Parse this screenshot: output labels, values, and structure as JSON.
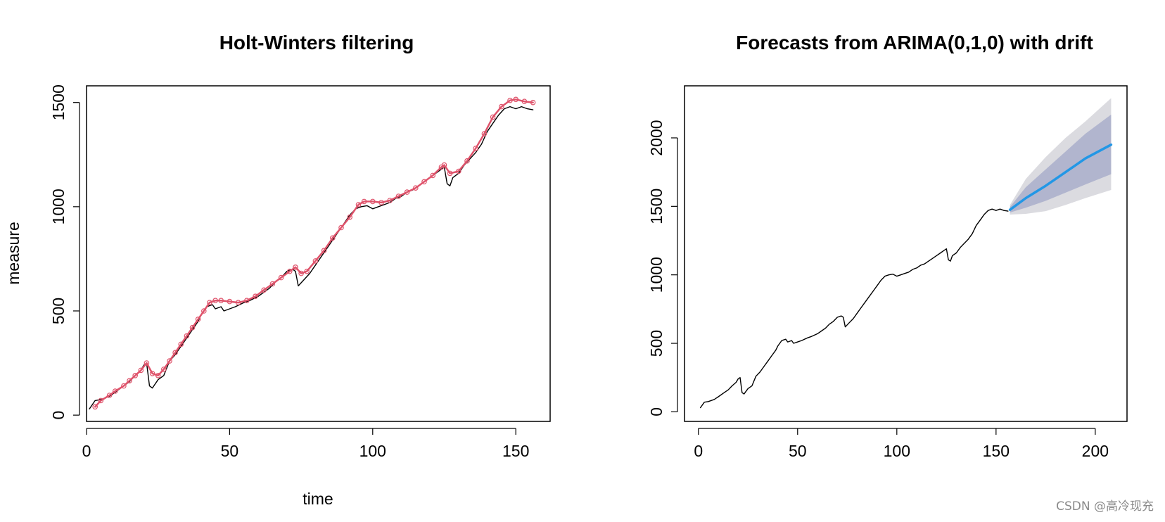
{
  "chart_data": [
    {
      "type": "line",
      "title": "Holt-Winters filtering",
      "xlabel": "time",
      "ylabel": "measure",
      "xlim": [
        0,
        162
      ],
      "ylim": [
        -30,
        1580
      ],
      "xticks": [
        0,
        50,
        100,
        150
      ],
      "yticks": [
        0,
        500,
        1000,
        1500
      ],
      "grid": false,
      "legend": "none",
      "series": [
        {
          "role": "observed",
          "color": "#000000",
          "points": [
            [
              1,
              30
            ],
            [
              3,
              70
            ],
            [
              5,
              75
            ],
            [
              8,
              90
            ],
            [
              10,
              110
            ],
            [
              13,
              140
            ],
            [
              15,
              160
            ],
            [
              17,
              190
            ],
            [
              19,
              215
            ],
            [
              20,
              240
            ],
            [
              21,
              250
            ],
            [
              22,
              140
            ],
            [
              23,
              130
            ],
            [
              25,
              170
            ],
            [
              27,
              190
            ],
            [
              29,
              260
            ],
            [
              31,
              290
            ],
            [
              33,
              330
            ],
            [
              35,
              370
            ],
            [
              37,
              410
            ],
            [
              39,
              450
            ],
            [
              40,
              480
            ],
            [
              42,
              520
            ],
            [
              44,
              530
            ],
            [
              45,
              510
            ],
            [
              47,
              520
            ],
            [
              48,
              500
            ],
            [
              50,
              510
            ],
            [
              52,
              520
            ],
            [
              55,
              540
            ],
            [
              57,
              550
            ],
            [
              60,
              570
            ],
            [
              62,
              590
            ],
            [
              64,
              610
            ],
            [
              66,
              640
            ],
            [
              68,
              660
            ],
            [
              70,
              690
            ],
            [
              72,
              700
            ],
            [
              73,
              690
            ],
            [
              74,
              620
            ],
            [
              76,
              650
            ],
            [
              78,
              680
            ],
            [
              80,
              720
            ],
            [
              82,
              760
            ],
            [
              84,
              800
            ],
            [
              86,
              840
            ],
            [
              88,
              880
            ],
            [
              90,
              920
            ],
            [
              92,
              960
            ],
            [
              94,
              990
            ],
            [
              96,
              1000
            ],
            [
              98,
              1005
            ],
            [
              100,
              990
            ],
            [
              102,
              1000
            ],
            [
              104,
              1010
            ],
            [
              106,
              1020
            ],
            [
              108,
              1040
            ],
            [
              110,
              1050
            ],
            [
              112,
              1070
            ],
            [
              114,
              1080
            ],
            [
              116,
              1100
            ],
            [
              118,
              1120
            ],
            [
              120,
              1140
            ],
            [
              122,
              1160
            ],
            [
              124,
              1180
            ],
            [
              125,
              1190
            ],
            [
              126,
              1110
            ],
            [
              127,
              1100
            ],
            [
              128,
              1140
            ],
            [
              130,
              1160
            ],
            [
              132,
              1200
            ],
            [
              134,
              1230
            ],
            [
              136,
              1260
            ],
            [
              138,
              1300
            ],
            [
              140,
              1360
            ],
            [
              142,
              1400
            ],
            [
              144,
              1440
            ],
            [
              146,
              1470
            ],
            [
              148,
              1480
            ],
            [
              150,
              1470
            ],
            [
              152,
              1480
            ],
            [
              154,
              1470
            ],
            [
              156,
              1465
            ]
          ]
        },
        {
          "role": "fitted",
          "color": "#df536b",
          "points": [
            [
              3,
              40
            ],
            [
              5,
              70
            ],
            [
              8,
              95
            ],
            [
              10,
              115
            ],
            [
              13,
              140
            ],
            [
              15,
              165
            ],
            [
              17,
              190
            ],
            [
              19,
              215
            ],
            [
              21,
              250
            ],
            [
              23,
              200
            ],
            [
              25,
              190
            ],
            [
              27,
              220
            ],
            [
              29,
              260
            ],
            [
              31,
              300
            ],
            [
              33,
              340
            ],
            [
              35,
              380
            ],
            [
              37,
              420
            ],
            [
              39,
              460
            ],
            [
              41,
              500
            ],
            [
              43,
              540
            ],
            [
              45,
              550
            ],
            [
              47,
              550
            ],
            [
              50,
              545
            ],
            [
              53,
              540
            ],
            [
              56,
              550
            ],
            [
              59,
              570
            ],
            [
              62,
              600
            ],
            [
              65,
              630
            ],
            [
              68,
              660
            ],
            [
              71,
              690
            ],
            [
              73,
              710
            ],
            [
              75,
              680
            ],
            [
              77,
              690
            ],
            [
              80,
              740
            ],
            [
              83,
              790
            ],
            [
              86,
              850
            ],
            [
              89,
              900
            ],
            [
              92,
              950
            ],
            [
              95,
              1010
            ],
            [
              97,
              1025
            ],
            [
              100,
              1025
            ],
            [
              103,
              1020
            ],
            [
              106,
              1030
            ],
            [
              109,
              1050
            ],
            [
              112,
              1070
            ],
            [
              115,
              1090
            ],
            [
              118,
              1120
            ],
            [
              121,
              1150
            ],
            [
              124,
              1190
            ],
            [
              125,
              1200
            ],
            [
              127,
              1160
            ],
            [
              130,
              1170
            ],
            [
              133,
              1220
            ],
            [
              136,
              1280
            ],
            [
              139,
              1350
            ],
            [
              142,
              1430
            ],
            [
              145,
              1480
            ],
            [
              148,
              1510
            ],
            [
              150,
              1515
            ],
            [
              153,
              1505
            ],
            [
              156,
              1500
            ]
          ]
        }
      ]
    },
    {
      "type": "line",
      "title": "Forecasts from ARIMA(0,1,0) with drift",
      "xlabel": "",
      "ylabel": "",
      "xlim": [
        -7,
        216
      ],
      "ylim": [
        -70,
        2380
      ],
      "xticks": [
        0,
        50,
        100,
        150,
        200
      ],
      "yticks": [
        0,
        500,
        1000,
        1500,
        2000
      ],
      "grid": false,
      "legend": "none",
      "series": [
        {
          "role": "observed",
          "color": "#000000",
          "points": [
            [
              1,
              30
            ],
            [
              3,
              70
            ],
            [
              5,
              75
            ],
            [
              8,
              90
            ],
            [
              10,
              110
            ],
            [
              13,
              140
            ],
            [
              15,
              160
            ],
            [
              17,
              190
            ],
            [
              19,
              215
            ],
            [
              20,
              240
            ],
            [
              21,
              250
            ],
            [
              22,
              140
            ],
            [
              23,
              130
            ],
            [
              25,
              170
            ],
            [
              27,
              190
            ],
            [
              29,
              260
            ],
            [
              31,
              290
            ],
            [
              33,
              330
            ],
            [
              35,
              370
            ],
            [
              37,
              410
            ],
            [
              39,
              450
            ],
            [
              40,
              480
            ],
            [
              42,
              520
            ],
            [
              44,
              530
            ],
            [
              45,
              510
            ],
            [
              47,
              520
            ],
            [
              48,
              500
            ],
            [
              50,
              510
            ],
            [
              52,
              520
            ],
            [
              55,
              540
            ],
            [
              57,
              550
            ],
            [
              60,
              570
            ],
            [
              62,
              590
            ],
            [
              64,
              610
            ],
            [
              66,
              640
            ],
            [
              68,
              660
            ],
            [
              70,
              690
            ],
            [
              72,
              700
            ],
            [
              73,
              690
            ],
            [
              74,
              620
            ],
            [
              76,
              650
            ],
            [
              78,
              680
            ],
            [
              80,
              720
            ],
            [
              82,
              760
            ],
            [
              84,
              800
            ],
            [
              86,
              840
            ],
            [
              88,
              880
            ],
            [
              90,
              920
            ],
            [
              92,
              960
            ],
            [
              94,
              990
            ],
            [
              96,
              1000
            ],
            [
              98,
              1005
            ],
            [
              100,
              990
            ],
            [
              102,
              1000
            ],
            [
              104,
              1010
            ],
            [
              106,
              1020
            ],
            [
              108,
              1040
            ],
            [
              110,
              1050
            ],
            [
              112,
              1070
            ],
            [
              114,
              1080
            ],
            [
              116,
              1100
            ],
            [
              118,
              1120
            ],
            [
              120,
              1140
            ],
            [
              122,
              1160
            ],
            [
              124,
              1180
            ],
            [
              125,
              1190
            ],
            [
              126,
              1110
            ],
            [
              127,
              1100
            ],
            [
              128,
              1140
            ],
            [
              130,
              1160
            ],
            [
              132,
              1200
            ],
            [
              134,
              1230
            ],
            [
              136,
              1260
            ],
            [
              138,
              1300
            ],
            [
              140,
              1360
            ],
            [
              142,
              1400
            ],
            [
              144,
              1440
            ],
            [
              146,
              1470
            ],
            [
              148,
              1480
            ],
            [
              150,
              1470
            ],
            [
              152,
              1480
            ],
            [
              154,
              1470
            ],
            [
              156,
              1465
            ]
          ]
        },
        {
          "role": "forecast",
          "color": "#2297e6",
          "points": [
            [
              157,
              1475
            ],
            [
              165,
              1560
            ],
            [
              175,
              1650
            ],
            [
              185,
              1750
            ],
            [
              195,
              1850
            ],
            [
              208,
              1950
            ]
          ]
        }
      ],
      "intervals": [
        {
          "level": 95,
          "color": "#dbdbe0",
          "x": [
            157,
            165,
            175,
            185,
            195,
            208
          ],
          "lower": [
            1440,
            1445,
            1465,
            1510,
            1560,
            1620
          ],
          "upper": [
            1510,
            1700,
            1860,
            2000,
            2120,
            2290
          ]
        },
        {
          "level": 80,
          "color": "#b1b5ce",
          "x": [
            157,
            165,
            175,
            185,
            195,
            208
          ],
          "lower": [
            1455,
            1490,
            1540,
            1600,
            1660,
            1735
          ],
          "upper": [
            1495,
            1640,
            1770,
            1900,
            2030,
            2170
          ]
        }
      ]
    }
  ],
  "watermark": "CSDN @高冷现充"
}
